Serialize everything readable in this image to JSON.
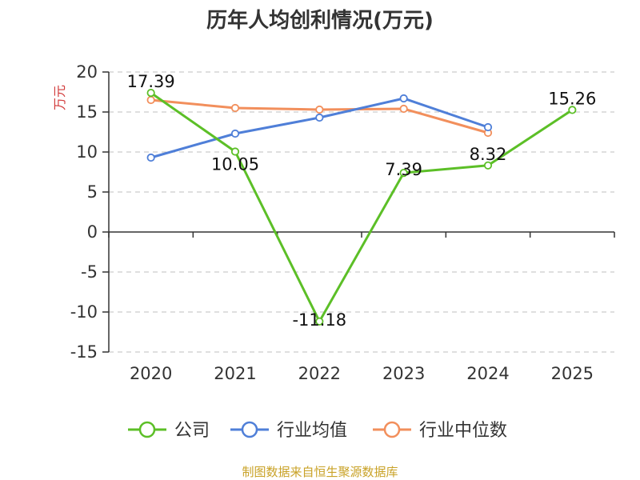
{
  "chart_data": {
    "type": "line",
    "title": "历年人均创利情况(万元)",
    "ylabel": "万元",
    "categories": [
      "2020",
      "2021",
      "2022",
      "2023",
      "2024",
      "2025"
    ],
    "ylim": [
      -15,
      20
    ],
    "yticks": [
      20,
      15,
      10,
      5,
      0,
      -5,
      -10,
      -15
    ],
    "grid": true,
    "legend_position": "bottom",
    "series": [
      {
        "name": "公司",
        "color": "#5cbf27",
        "values": [
          17.39,
          10.05,
          -11.18,
          7.39,
          8.32,
          15.26
        ],
        "labels": [
          "17.39",
          "10.05",
          "-11.18",
          "7.39",
          "8.32",
          "15.26"
        ]
      },
      {
        "name": "行业均值",
        "color": "#4f7fd8",
        "values": [
          9.3,
          12.3,
          14.3,
          16.7,
          13.1,
          null
        ]
      },
      {
        "name": "行业中位数",
        "color": "#f28f5c",
        "values": [
          16.5,
          15.5,
          15.3,
          15.4,
          12.4,
          null
        ]
      }
    ]
  },
  "footer": {
    "source": "制图数据来自恒生聚源数据库",
    "color": "#c9a227"
  },
  "axis_label_color": "#d23b3b"
}
